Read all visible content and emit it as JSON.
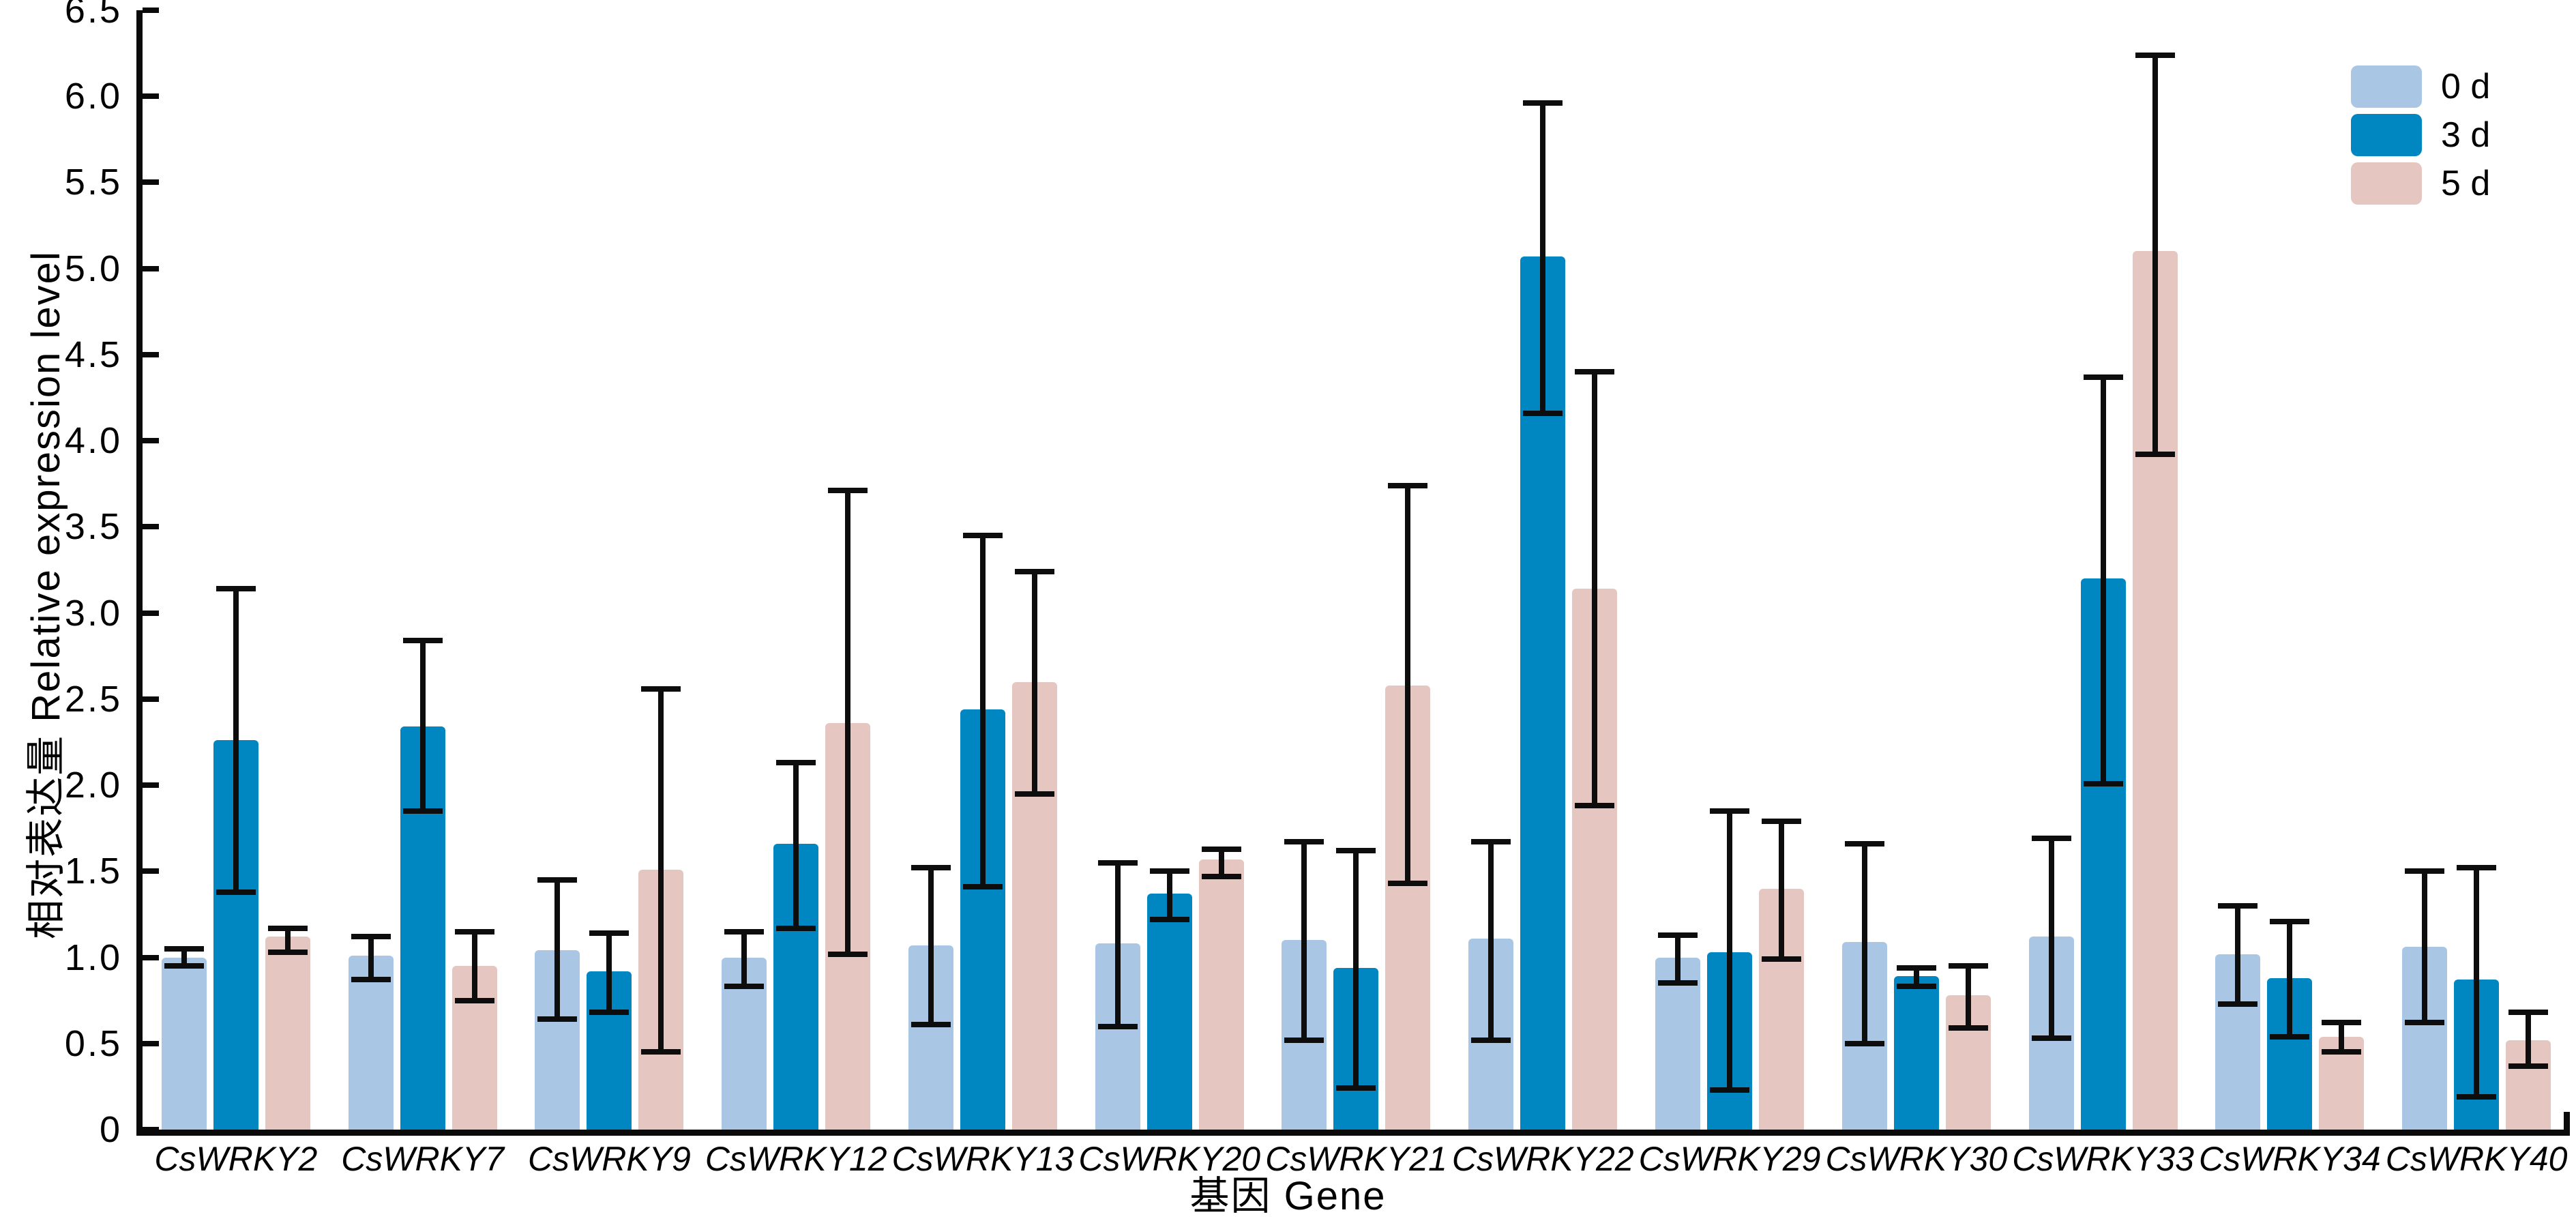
{
  "chart_data": {
    "type": "bar",
    "title": "",
    "xlabel": "基因 Gene",
    "ylabel": "相对表达量 Relative expression level",
    "ylim": [
      0,
      6.5
    ],
    "ytick_step": 0.5,
    "ytick_labels": [
      "0",
      "0.5",
      "1.0",
      "1.5",
      "2.0",
      "2.5",
      "3.0",
      "3.5",
      "4.0",
      "4.5",
      "5.0",
      "5.5",
      "6.0",
      "6.5"
    ],
    "grid": false,
    "legend_position": "top-right",
    "error_bars": true,
    "categories": [
      "CsWRKY2",
      "CsWRKY7",
      "CsWRKY9",
      "CsWRKY12",
      "CsWRKY13",
      "CsWRKY20",
      "CsWRKY21",
      "CsWRKY22",
      "CsWRKY29",
      "CsWRKY30",
      "CsWRKY33",
      "CsWRKY34",
      "CsWRKY40"
    ],
    "series": [
      {
        "name": "0 d",
        "color": "#a9c7e4",
        "values": [
          1.0,
          1.01,
          1.04,
          1.0,
          1.07,
          1.08,
          1.1,
          1.11,
          1.0,
          1.09,
          1.12,
          1.02,
          1.06
        ],
        "err_low": [
          0.95,
          0.87,
          0.64,
          0.83,
          0.61,
          0.6,
          0.52,
          0.52,
          0.85,
          0.5,
          0.53,
          0.73,
          0.62
        ],
        "err_high": [
          1.05,
          1.12,
          1.45,
          1.15,
          1.52,
          1.55,
          1.67,
          1.67,
          1.13,
          1.66,
          1.69,
          1.3,
          1.5
        ]
      },
      {
        "name": "3 d",
        "color": "#0087c1",
        "values": [
          2.26,
          2.34,
          0.92,
          1.66,
          2.44,
          1.37,
          0.94,
          5.07,
          1.03,
          0.89,
          3.2,
          0.88,
          0.87
        ],
        "err_low": [
          1.38,
          1.85,
          0.68,
          1.17,
          1.41,
          1.22,
          0.24,
          4.16,
          0.23,
          0.83,
          2.01,
          0.54,
          0.19
        ],
        "err_high": [
          3.14,
          2.84,
          1.14,
          2.13,
          3.45,
          1.5,
          1.62,
          5.96,
          1.85,
          0.94,
          4.37,
          1.21,
          1.52
        ]
      },
      {
        "name": "5 d",
        "color": "#e5c6c1",
        "values": [
          1.12,
          0.95,
          1.51,
          2.36,
          2.6,
          1.57,
          2.58,
          3.14,
          1.4,
          0.78,
          5.1,
          0.54,
          0.52
        ],
        "err_low": [
          1.03,
          0.75,
          0.45,
          1.02,
          1.95,
          1.47,
          1.43,
          1.88,
          0.99,
          0.59,
          3.92,
          0.45,
          0.37
        ],
        "err_high": [
          1.17,
          1.15,
          2.56,
          3.71,
          3.24,
          1.63,
          3.74,
          4.4,
          1.79,
          0.95,
          6.24,
          0.62,
          0.68
        ]
      }
    ],
    "style": {
      "axis_color": "#0a0a0a",
      "error_bar_color": "#0d0d0d",
      "background": "#ffffff"
    }
  }
}
